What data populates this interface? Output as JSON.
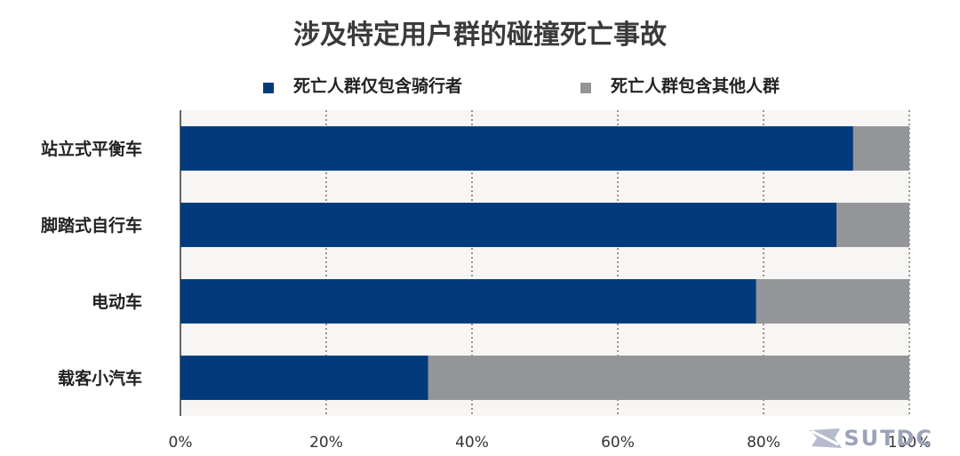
{
  "colors": {
    "cyclist": "#023a7c",
    "other": "#939598",
    "plot_bg": "#f7f6f4",
    "grid": "#555555",
    "watermark": "#9aa3b8"
  },
  "watermark": {
    "text": "SUTDC",
    "icon": "sutdc-logo-icon"
  },
  "chart_data": {
    "type": "bar",
    "orientation": "horizontal",
    "stacked": true,
    "title": "涉及特定用户群的碰撞死亡事故",
    "categories": [
      "站立式平衡车",
      "脚踏式自行车",
      "电动车",
      "载客小汽车"
    ],
    "series": [
      {
        "name": "死亡人群仅包含骑行者",
        "values": [
          92.3,
          90.0,
          79.0,
          34.0
        ]
      },
      {
        "name": "死亡人群包含其他人群",
        "values": [
          7.7,
          10.0,
          21.0,
          66.0
        ]
      }
    ],
    "xlim": [
      0,
      100
    ],
    "x_ticks": [
      "0%",
      "20%",
      "40%",
      "60%",
      "80%",
      "100%"
    ],
    "grid": "vertical dotted",
    "legend_position": "top"
  }
}
